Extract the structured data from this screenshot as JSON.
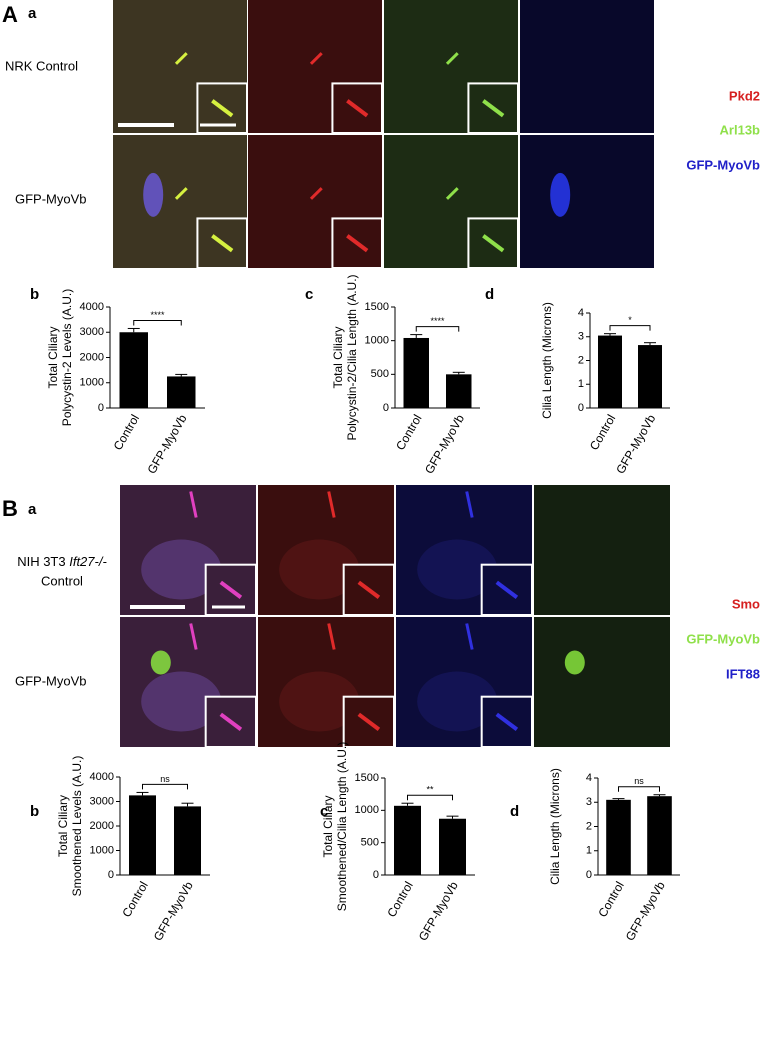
{
  "panels": {
    "A": {
      "letter": "A",
      "sub": "a",
      "rows": [
        "NRK Control",
        "GFP-MyoVb"
      ],
      "legend": [
        "Pkd2",
        "Arl13b",
        "GFP-MyoVb"
      ],
      "charts": [
        "b",
        "c",
        "d"
      ]
    },
    "B": {
      "letter": "B",
      "sub": "a",
      "rows": [
        "NIH 3T3",
        "Ift27-/-",
        "Control",
        "GFP-MyoVb"
      ],
      "legend": [
        "Smo",
        "GFP-MyoVb",
        "IFT88"
      ],
      "charts": [
        "b",
        "c",
        "d"
      ]
    }
  },
  "chart_data": [
    {
      "type": "bar",
      "ylabel": [
        "Total Ciliary",
        "Polycystin-2 Levels (A.U.)"
      ],
      "categories": [
        "Control",
        "GFP-MyoVb"
      ],
      "values": [
        3000,
        1250
      ],
      "errors": [
        150,
        80
      ],
      "ylim": [
        0,
        4000
      ],
      "yticks": [
        0,
        1000,
        2000,
        3000,
        4000
      ],
      "significance": "****",
      "color": "#000000"
    },
    {
      "type": "bar",
      "ylabel": [
        "Total Ciliary",
        "Polycystin-2/Cilia Length (A.U.)"
      ],
      "categories": [
        "Control",
        "GFP-MyoVb"
      ],
      "values": [
        1040,
        500
      ],
      "errors": [
        50,
        30
      ],
      "ylim": [
        0,
        1500
      ],
      "yticks": [
        0,
        500,
        1000,
        1500
      ],
      "significance": "****",
      "color": "#000000"
    },
    {
      "type": "bar",
      "ylabel": [
        "Cilia Length (Microns)"
      ],
      "categories": [
        "Control",
        "GFP-MyoVb"
      ],
      "values": [
        3.05,
        2.65
      ],
      "errors": [
        0.08,
        0.1
      ],
      "ylim": [
        0,
        4
      ],
      "yticks": [
        0,
        1,
        2,
        3,
        4
      ],
      "significance": "*",
      "color": "#000000"
    },
    {
      "type": "bar",
      "ylabel": [
        "Total Ciliary",
        "Smoothened Levels (A.U.)"
      ],
      "categories": [
        "Control",
        "GFP-MyoVb"
      ],
      "values": [
        3250,
        2800
      ],
      "errors": [
        120,
        130
      ],
      "ylim": [
        0,
        4000
      ],
      "yticks": [
        0,
        1000,
        2000,
        3000,
        4000
      ],
      "significance": "ns",
      "color": "#000000"
    },
    {
      "type": "bar",
      "ylabel": [
        "Total Ciliary",
        "Smoothened/Cilia Length (A.U.)"
      ],
      "categories": [
        "Control",
        "GFP-MyoVb"
      ],
      "values": [
        1070,
        870
      ],
      "errors": [
        40,
        40
      ],
      "ylim": [
        0,
        1500
      ],
      "yticks": [
        0,
        500,
        1000,
        1500
      ],
      "significance": "**",
      "color": "#000000"
    },
    {
      "type": "bar",
      "ylabel": [
        "Cilia Length (Microns)"
      ],
      "categories": [
        "Control",
        "GFP-MyoVb"
      ],
      "values": [
        3.1,
        3.25
      ],
      "errors": [
        0.05,
        0.06
      ],
      "ylim": [
        0,
        4
      ],
      "yticks": [
        0,
        1,
        2,
        3,
        4
      ],
      "significance": "ns",
      "color": "#000000"
    }
  ]
}
